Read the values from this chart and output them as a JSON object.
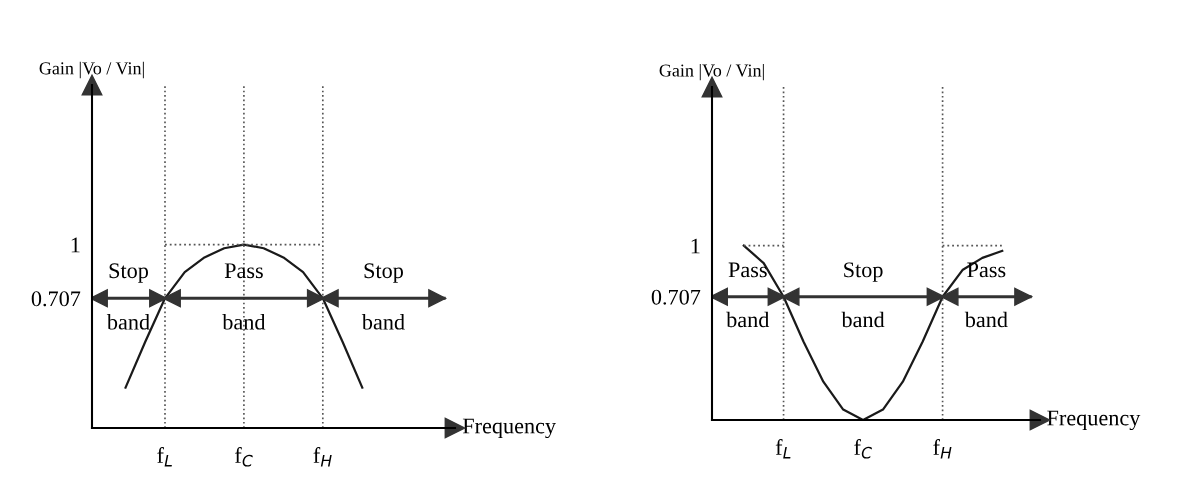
{
  "chart_data": [
    {
      "type": "line",
      "xlabel": "Frequency",
      "ylabel": "Gain |Vo / Vin|",
      "ylim": [
        0,
        1.87
      ],
      "categories": [
        null,
        null,
        "f$_{L}$",
        null,
        null,
        null,
        "f$_{C}$",
        null,
        null,
        null,
        "f$_{H}$",
        null,
        null
      ],
      "yticks": [
        1,
        0.707
      ],
      "grid": false,
      "legend": false,
      "series": [
        {
          "color": "#1a1a1a",
          "line_style": "solid",
          "values": [
            0.22,
            0.47,
            0.707,
            0.85,
            0.93,
            0.98,
            1,
            0.98,
            0.93,
            0.85,
            0.707,
            0.47,
            0.22
          ]
        },
        {
          "color": "#555555",
          "line_style": "dotted",
          "values": [
            null,
            null,
            1,
            1,
            1,
            1,
            1,
            1,
            1,
            1,
            1,
            null,
            null
          ]
        }
      ],
      "ref_lines": [
        {
          "axis": "x",
          "value": "f$_{L}$",
          "line_style": "dotted",
          "color": "#555555"
        },
        {
          "axis": "x",
          "value": "f$_{C}$",
          "line_style": "dotted",
          "color": "#555555"
        },
        {
          "axis": "x",
          "value": "f$_{H}$",
          "line_style": "dotted",
          "color": "#555555"
        },
        {
          "axis": "y",
          "value": 0.707,
          "line_style": "solid",
          "color": "#333333"
        }
      ],
      "annotations": [
        "Stop",
        "band",
        "Pass",
        "band",
        "Stop",
        "band"
      ]
    },
    {
      "type": "line",
      "xlabel": "Frequency",
      "ylabel": "Gain |Vo / Vin|",
      "ylim": [
        0,
        1.91
      ],
      "categories": [
        null,
        null,
        "f$_{L}$",
        null,
        null,
        null,
        "f$_{C}$",
        null,
        null,
        null,
        "f$_{H}$",
        null,
        null,
        null
      ],
      "yticks": [
        1,
        0.707
      ],
      "grid": false,
      "legend": false,
      "series": [
        {
          "color": "#1a1a1a",
          "line_style": "solid",
          "values": [
            1,
            0.9,
            0.707,
            0.45,
            0.22,
            0.06,
            0,
            0.06,
            0.22,
            0.45,
            0.707,
            0.86,
            0.93,
            0.97
          ]
        },
        {
          "color": "#555555",
          "line_style": "dotted",
          "values": [
            1,
            1,
            1,
            null,
            null,
            null,
            null,
            null,
            null,
            null,
            1,
            1,
            1,
            1
          ]
        }
      ],
      "ref_lines": [
        {
          "axis": "x",
          "value": "f$_{L}$",
          "line_style": "dotted",
          "color": "#555555"
        },
        {
          "axis": "x",
          "value": "f$_{H}$",
          "line_style": "dotted",
          "color": "#555555"
        },
        {
          "axis": "y",
          "value": 0.707,
          "line_style": "solid",
          "color": "#333333"
        }
      ],
      "annotations": [
        "Pass",
        "band",
        "Stop",
        "band",
        "Pass",
        "band"
      ]
    }
  ]
}
